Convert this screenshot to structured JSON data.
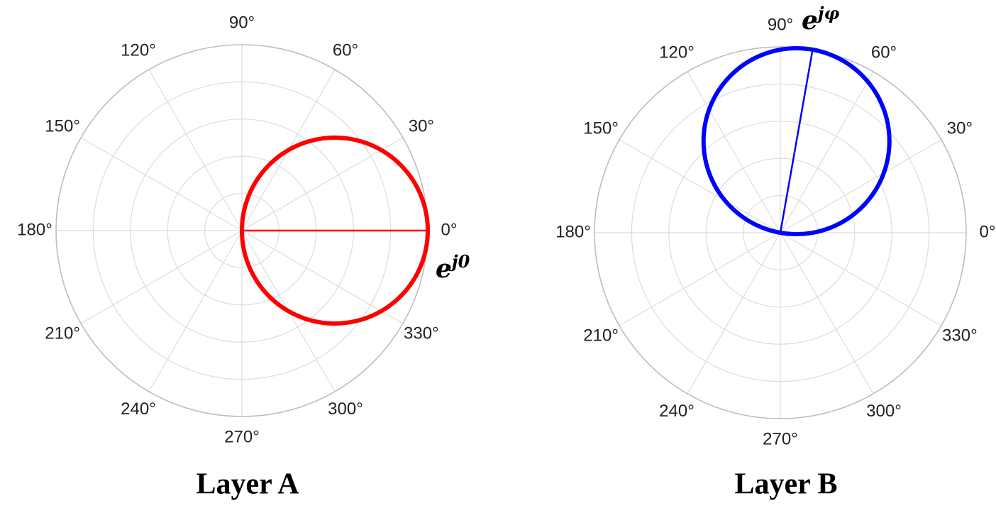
{
  "chart_data": [
    {
      "type": "polar",
      "title": "Layer A",
      "thetaticks": [
        {
          "value": 0,
          "label": "0°"
        },
        {
          "value": 30,
          "label": "30°"
        },
        {
          "value": 60,
          "label": "60°"
        },
        {
          "value": 90,
          "label": "90°"
        },
        {
          "value": 120,
          "label": "120°"
        },
        {
          "value": 150,
          "label": "150°"
        },
        {
          "value": 180,
          "label": "180°"
        },
        {
          "value": 210,
          "label": "210°"
        },
        {
          "value": 240,
          "label": "240°"
        },
        {
          "value": 270,
          "label": "270°"
        },
        {
          "value": 300,
          "label": "300°"
        },
        {
          "value": 330,
          "label": "330°"
        }
      ],
      "rlim": [
        0,
        1
      ],
      "rticks": [
        0.2,
        0.4,
        0.6,
        0.8,
        1
      ],
      "grid": true,
      "series": [
        {
          "color": "#ff0000",
          "phase": 0,
          "amplitude": 1,
          "label_base": "e",
          "label_exponent": "j0"
        }
      ]
    },
    {
      "type": "polar",
      "title": "Layer B",
      "thetaticks": [
        {
          "value": 0,
          "label": "0°"
        },
        {
          "value": 30,
          "label": "30°"
        },
        {
          "value": 60,
          "label": "60°"
        },
        {
          "value": 90,
          "label": "90°"
        },
        {
          "value": 120,
          "label": "120°"
        },
        {
          "value": 150,
          "label": "150°"
        },
        {
          "value": 180,
          "label": "180°"
        },
        {
          "value": 210,
          "label": "210°"
        },
        {
          "value": 240,
          "label": "240°"
        },
        {
          "value": 270,
          "label": "270°"
        },
        {
          "value": 300,
          "label": "300°"
        },
        {
          "value": 330,
          "label": "330°"
        }
      ],
      "rlim": [
        0,
        1
      ],
      "rticks": [
        0.2,
        0.4,
        0.6,
        0.8,
        1
      ],
      "grid": true,
      "series": [
        {
          "color": "#0000ff",
          "phase": 80,
          "amplitude": 1,
          "label_base": "e",
          "label_exponent": "jφ"
        }
      ]
    }
  ]
}
